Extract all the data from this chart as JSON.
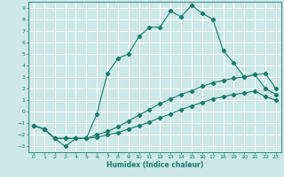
{
  "xlabel": "Humidex (Indice chaleur)",
  "ylabel": "",
  "xlim": [
    -0.5,
    23.5
  ],
  "ylim": [
    -3.5,
    9.5
  ],
  "xticks": [
    0,
    1,
    2,
    3,
    4,
    5,
    6,
    7,
    8,
    9,
    10,
    11,
    12,
    13,
    14,
    15,
    16,
    17,
    18,
    19,
    20,
    21,
    22,
    23
  ],
  "yticks": [
    -3,
    -2,
    -1,
    0,
    1,
    2,
    3,
    4,
    5,
    6,
    7,
    8,
    9
  ],
  "background_color": "#cce8e8",
  "grid_color": "#ffffff",
  "line_color": "#1a7a6e",
  "line1_x": [
    0,
    1,
    2,
    3,
    4,
    5,
    6,
    7,
    8,
    9,
    10,
    11,
    12,
    13,
    14,
    15,
    16,
    17,
    18,
    19,
    20,
    21,
    22,
    23
  ],
  "line1_y": [
    -1.2,
    -1.5,
    -2.3,
    -3.0,
    -2.3,
    -2.3,
    -0.2,
    3.3,
    4.6,
    5.0,
    6.5,
    7.3,
    7.3,
    8.7,
    8.2,
    9.2,
    8.5,
    8.0,
    5.3,
    4.2,
    3.0,
    3.2,
    3.3,
    2.0
  ],
  "line2_x": [
    0,
    1,
    2,
    3,
    4,
    5,
    6,
    7,
    8,
    9,
    10,
    11,
    12,
    13,
    14,
    15,
    16,
    17,
    18,
    19,
    20,
    21,
    22,
    23
  ],
  "line2_y": [
    -1.2,
    -1.5,
    -2.3,
    -2.3,
    -2.3,
    -2.3,
    -2.0,
    -1.7,
    -1.3,
    -0.8,
    -0.3,
    0.2,
    0.7,
    1.1,
    1.5,
    1.8,
    2.2,
    2.5,
    2.7,
    2.9,
    3.0,
    3.2,
    2.0,
    1.5
  ],
  "line3_x": [
    0,
    1,
    2,
    3,
    4,
    5,
    6,
    7,
    8,
    9,
    10,
    11,
    12,
    13,
    14,
    15,
    16,
    17,
    18,
    19,
    20,
    21,
    22,
    23
  ],
  "line3_y": [
    -1.2,
    -1.5,
    -2.3,
    -2.3,
    -2.3,
    -2.3,
    -2.2,
    -2.0,
    -1.8,
    -1.5,
    -1.2,
    -0.9,
    -0.5,
    -0.2,
    0.2,
    0.5,
    0.8,
    1.1,
    1.3,
    1.5,
    1.6,
    1.8,
    1.3,
    1.0
  ]
}
